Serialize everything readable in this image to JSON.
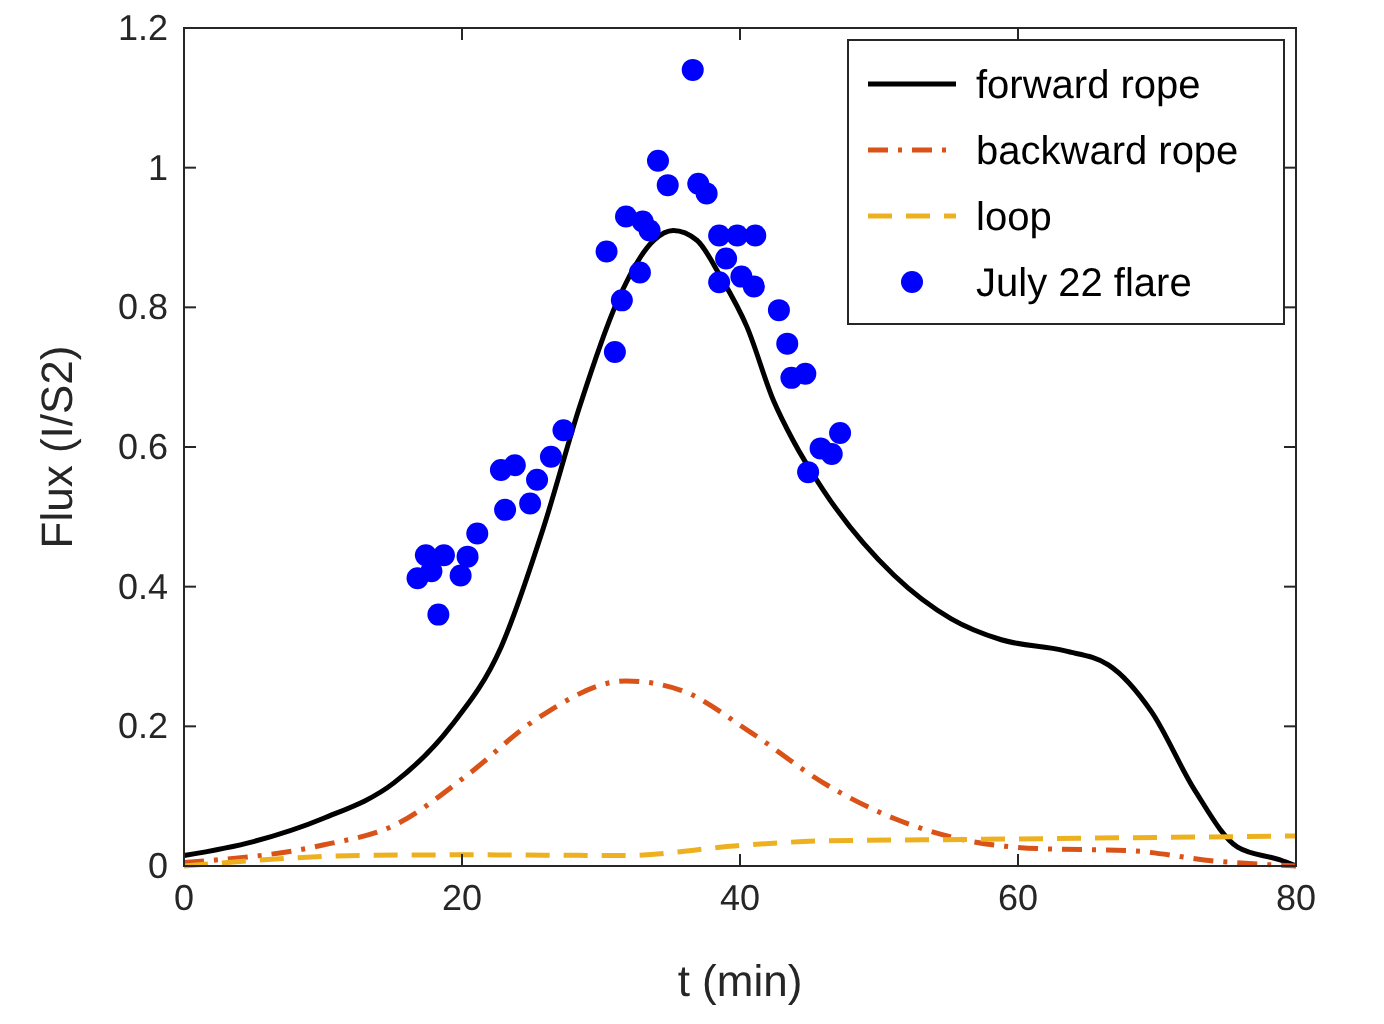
{
  "chart_data": {
    "type": "line",
    "xlabel": "t (min)",
    "ylabel": "Flux (I/S2)",
    "xlim": [
      0,
      80
    ],
    "ylim": [
      0,
      1.2
    ],
    "xticks": [
      0,
      20,
      40,
      60,
      80
    ],
    "yticks": [
      0,
      0.2,
      0.4,
      0.6,
      0.8,
      1,
      1.2
    ],
    "grid": false,
    "legend": "top right",
    "series": [
      {
        "name": "forward rope",
        "color": "#000000",
        "line_style": "solid",
        "x": [
          0,
          5,
          10,
          15.1,
          19.2,
          22.8,
          25.9,
          28.5,
          31.1,
          33.8,
          35.2,
          36.9,
          38.6,
          40.5,
          42.4,
          43.8,
          46,
          51.1,
          55.2,
          58.8,
          63.4,
          66.5,
          69.6,
          72.7,
          75.8,
          78.8,
          80
        ],
        "values": [
          0.015,
          0.035,
          0.068,
          0.119,
          0.2,
          0.313,
          0.487,
          0.66,
          0.805,
          0.896,
          0.91,
          0.896,
          0.844,
          0.772,
          0.667,
          0.61,
          0.538,
          0.416,
          0.354,
          0.324,
          0.308,
          0.288,
          0.221,
          0.109,
          0.027,
          0.009,
          0
        ]
      },
      {
        "name": "backward rope",
        "color": "#d95319",
        "line_style": "dashdot",
        "x": [
          0,
          10,
          15.1,
          20.3,
          25.4,
          31.8,
          35.7,
          40.8,
          46,
          51.1,
          56.2,
          61.4,
          68,
          74.2,
          80
        ],
        "values": [
          0.005,
          0.03,
          0.058,
          0.129,
          0.211,
          0.265,
          0.252,
          0.191,
          0.119,
          0.068,
          0.037,
          0.025,
          0.022,
          0.007,
          0
        ]
      },
      {
        "name": "loop",
        "color": "#edb120",
        "line_style": "dashed",
        "x": [
          0,
          12.6,
          20.3,
          31.8,
          39.8,
          46,
          56.2,
          80
        ],
        "values": [
          0,
          0.015,
          0.016,
          0.015,
          0.029,
          0.036,
          0.038,
          0.043
        ]
      },
      {
        "name": "July 22 flare",
        "type": "scatter",
        "color": "#0000ff",
        "marker": "circle",
        "x": [
          36.6,
          34.1,
          34.8,
          37,
          37.6,
          31.8,
          33,
          33.5,
          30.4,
          32.8,
          31.5,
          31,
          38.5,
          39.8,
          41.1,
          39,
          38.5,
          40.1,
          41,
          42.8,
          43.4,
          43.7,
          44.7,
          47.2,
          45.8,
          46.6,
          44.9,
          27.3,
          26.4,
          22.8,
          23.8,
          25.4,
          24.9,
          23.1,
          21.1,
          20.4,
          19.9,
          17.4,
          18.7,
          17.8,
          16.8,
          18.3
        ],
        "values": [
          1.14,
          1.01,
          0.975,
          0.977,
          0.963,
          0.93,
          0.923,
          0.91,
          0.88,
          0.85,
          0.81,
          0.736,
          0.903,
          0.903,
          0.903,
          0.87,
          0.836,
          0.844,
          0.83,
          0.796,
          0.748,
          0.699,
          0.705,
          0.62,
          0.598,
          0.59,
          0.564,
          0.624,
          0.586,
          0.567,
          0.574,
          0.553,
          0.519,
          0.51,
          0.476,
          0.443,
          0.416,
          0.445,
          0.445,
          0.422,
          0.412,
          0.36
        ]
      }
    ]
  }
}
